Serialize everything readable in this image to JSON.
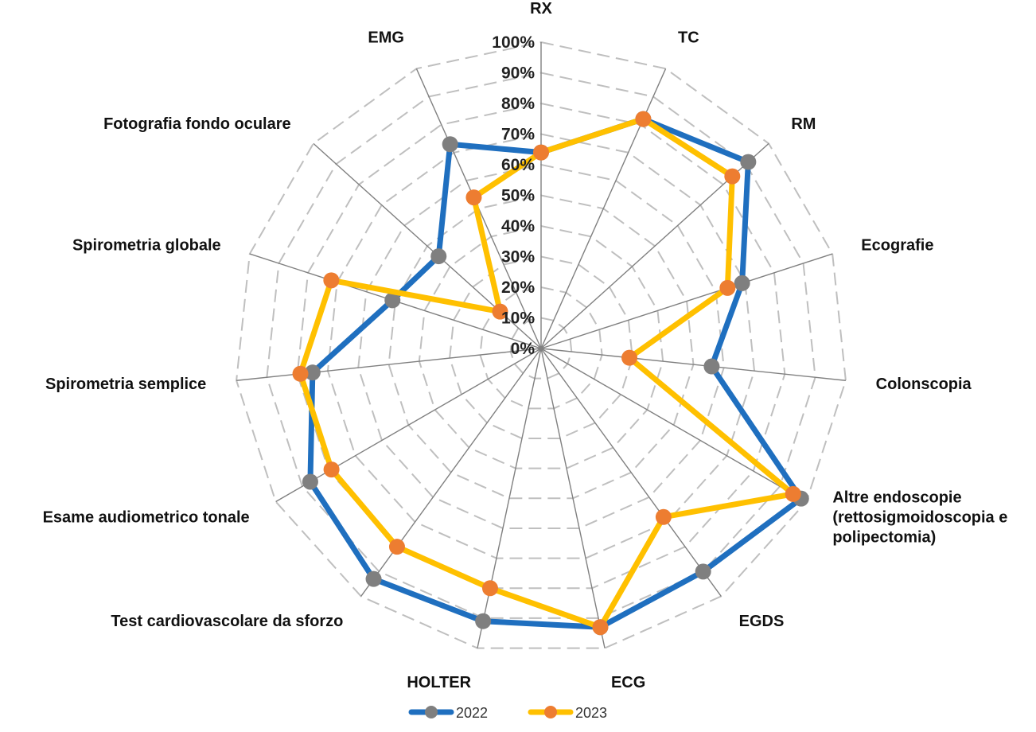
{
  "chart_data": {
    "type": "radar",
    "categories": [
      [
        "RX"
      ],
      [
        "TC"
      ],
      [
        "RM"
      ],
      [
        "Ecografie"
      ],
      [
        "Colonscopia"
      ],
      [
        "Altre endoscopie",
        "(rettosigmoidoscopia e",
        "polipectomia)"
      ],
      [
        "EGDS"
      ],
      [
        "ECG"
      ],
      [
        "HOLTER"
      ],
      [
        "Test cardiovascolare da sforzo"
      ],
      [
        "Esame audiometrico tonale"
      ],
      [
        "Spirometria semplice"
      ],
      [
        "Spirometria globale"
      ],
      [
        "Fotografia fondo oculare"
      ],
      [
        "EMG"
      ]
    ],
    "ticks": [
      "0%",
      "10%",
      "20%",
      "30%",
      "40%",
      "50%",
      "60%",
      "70%",
      "80%",
      "90%",
      "100%"
    ],
    "ylim": [
      0,
      100
    ],
    "series": [
      {
        "name": "2022",
        "line_color": "#1f6fbf",
        "marker_color": "#7f7f7f",
        "values": [
          64,
          82,
          91,
          69,
          56,
          98,
          90,
          93,
          91,
          93,
          87,
          75,
          51,
          45,
          73
        ]
      },
      {
        "name": "2023",
        "line_color": "#ffc000",
        "marker_color": "#ed7d31",
        "values": [
          64,
          82,
          84,
          64,
          29,
          95,
          68,
          93,
          80,
          80,
          79,
          79,
          72,
          18,
          54
        ]
      }
    ],
    "legend_position": "bottom"
  }
}
